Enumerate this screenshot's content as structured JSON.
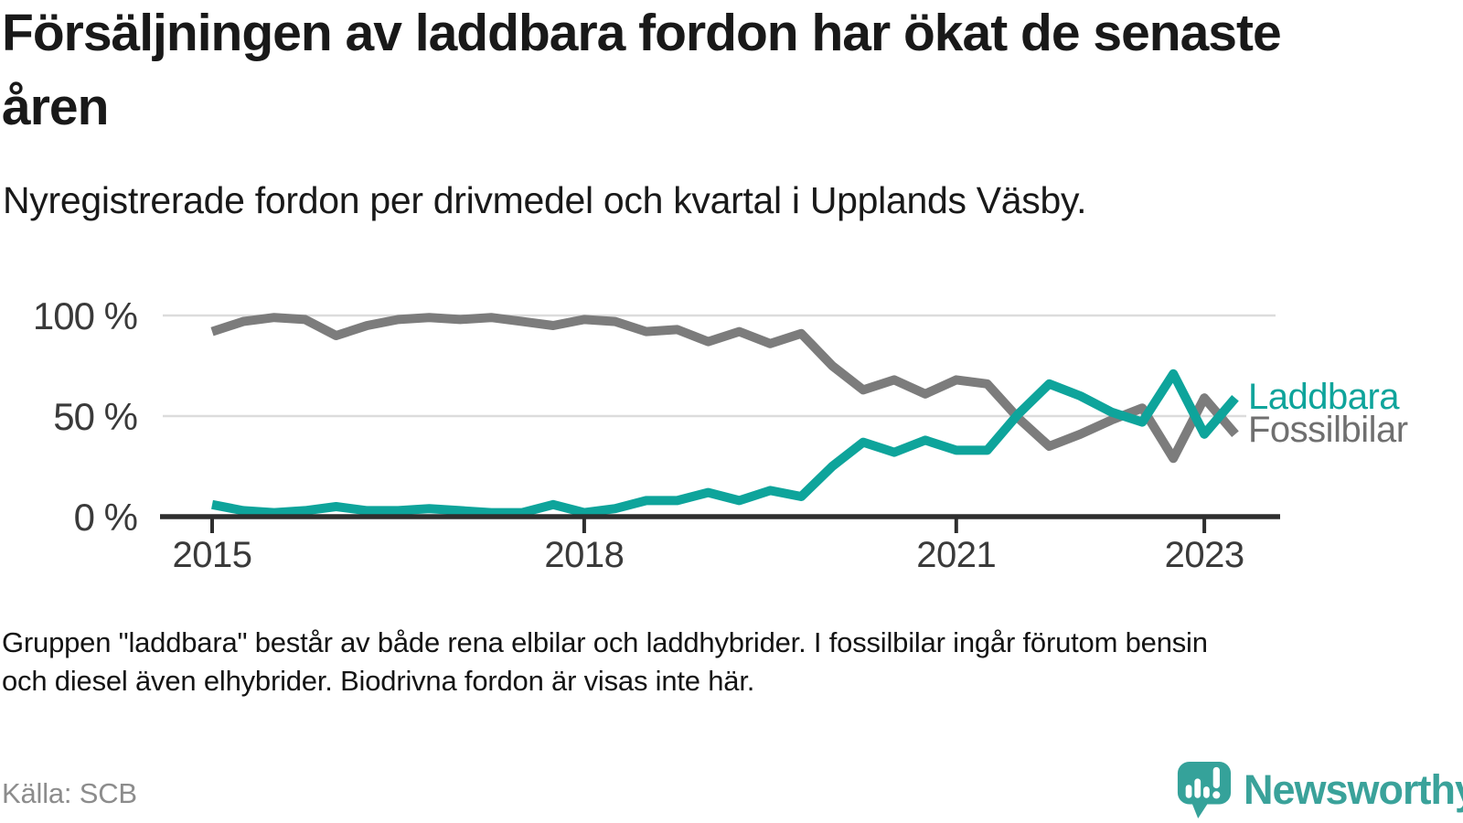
{
  "title": "Försäljningen av laddbara fordon har ökat de senaste åren",
  "subtitle": "Nyregistrerade fordon per drivmedel och kvartal i Upplands Väsby.",
  "footnote": {
    "line1": "Gruppen \"laddbara\" består av både rena elbilar och laddhybrider. I fossilbilar ingår förutom bensin",
    "line2": "och diesel även elhybrider. Biodrivna fordon är visas inte här."
  },
  "source": "Källa: SCB",
  "brand": {
    "name": "Newsworthy",
    "teal": "#3aa29a"
  },
  "colors": {
    "laddbara": "#0ea49b",
    "fossilbilar": "#7c7c7c",
    "legend_gray": "#6f6f6f",
    "axis": "#2e2e2e",
    "grid": "#dcdcdc"
  },
  "chart_data": {
    "type": "line",
    "title": "Nyregistrerade fordon per drivmedel och kvartal i Upplands Väsby",
    "x_unit": "quarter",
    "x": [
      "2015 Q1",
      "2015 Q2",
      "2015 Q3",
      "2015 Q4",
      "2016 Q1",
      "2016 Q2",
      "2016 Q3",
      "2016 Q4",
      "2017 Q1",
      "2017 Q2",
      "2017 Q3",
      "2017 Q4",
      "2018 Q1",
      "2018 Q2",
      "2018 Q3",
      "2018 Q4",
      "2019 Q1",
      "2019 Q2",
      "2019 Q3",
      "2019 Q4",
      "2020 Q1",
      "2020 Q2",
      "2020 Q3",
      "2020 Q4",
      "2021 Q1",
      "2021 Q2",
      "2021 Q3",
      "2021 Q4",
      "2022 Q1",
      "2022 Q2",
      "2022 Q3",
      "2022 Q4",
      "2023 Q1",
      "2023 Q2"
    ],
    "series": [
      {
        "name": "Fossilbilar",
        "color": "#7c7c7c",
        "unit": "%",
        "values": [
          92,
          97,
          99,
          98,
          90,
          95,
          98,
          99,
          98,
          99,
          97,
          95,
          98,
          97,
          92,
          93,
          87,
          92,
          86,
          91,
          75,
          63,
          68,
          61,
          68,
          66,
          49,
          35,
          41,
          48,
          54,
          29,
          59,
          41
        ]
      },
      {
        "name": "Laddbara",
        "color": "#0ea49b",
        "unit": "%",
        "values": [
          6,
          3,
          2,
          3,
          5,
          3,
          3,
          4,
          3,
          2,
          2,
          6,
          2,
          4,
          8,
          8,
          12,
          8,
          13,
          10,
          25,
          37,
          32,
          38,
          33,
          33,
          51,
          66,
          60,
          52,
          47,
          71,
          41,
          59
        ]
      }
    ],
    "yticks": [
      "100 %",
      "50 %",
      "0 %"
    ],
    "ytick_values": [
      100,
      50,
      0
    ],
    "xticks": [
      "2015",
      "2018",
      "2021",
      "2023"
    ],
    "xtick_indices": [
      0,
      12,
      24,
      32
    ],
    "ylim": [
      0,
      100
    ],
    "grid": "horizontal",
    "legend_position": "right-of-line-end"
  }
}
